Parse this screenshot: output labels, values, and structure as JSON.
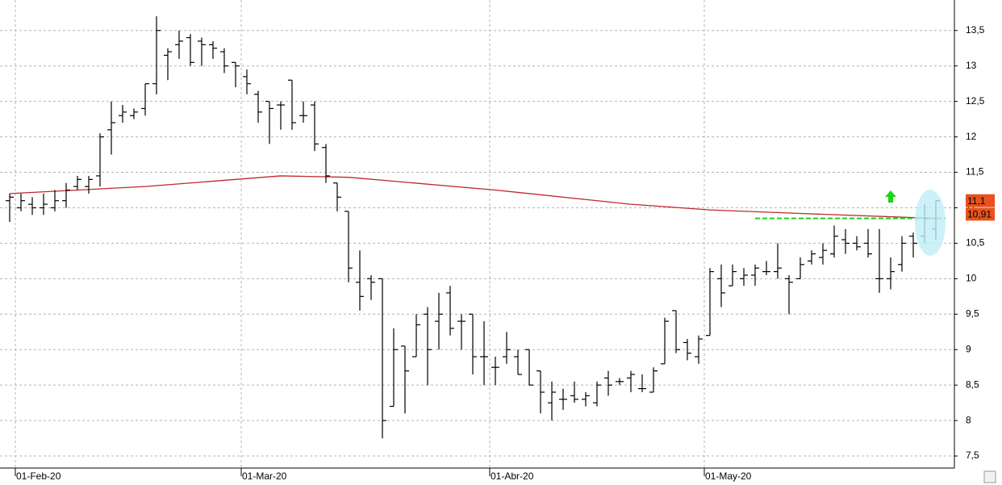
{
  "chart_data": {
    "type": "ohlc",
    "categories": [
      null,
      "01-Feb-20",
      null,
      null,
      null,
      null,
      null,
      null,
      null,
      null,
      null,
      null,
      null,
      null,
      null,
      null,
      null,
      null,
      null,
      null,
      null,
      "01-Mar-20",
      null,
      null,
      null,
      null,
      null,
      null,
      null,
      null,
      null,
      null,
      null,
      null,
      null,
      null,
      null,
      null,
      null,
      null,
      null,
      null,
      null,
      "01-Abr-20",
      null,
      null,
      null,
      null,
      null,
      null,
      null,
      null,
      null,
      null,
      null,
      null,
      null,
      null,
      null,
      null,
      null,
      null,
      "01-May-20",
      null,
      null,
      null,
      null,
      null,
      null,
      null,
      null,
      null,
      null,
      null,
      null,
      null,
      null,
      null,
      null,
      null,
      null,
      null,
      null
    ],
    "open": [
      11.1,
      11.0,
      11.05,
      11.0,
      11.0,
      11.1,
      11.3,
      11.3,
      11.45,
      12.1,
      12.3,
      12.3,
      12.4,
      12.75,
      13.15,
      13.3,
      13.4,
      13.35,
      13.3,
      13.2,
      13.05,
      12.85,
      12.6,
      12.5,
      12.45,
      12.8,
      12.3,
      12.45,
      11.85,
      11.35,
      10.95,
      9.95,
      10.0,
      10.0,
      8.2,
      9.05,
      8.9,
      9.5,
      9.4,
      9.8,
      9.4,
      9.5,
      8.9,
      8.75,
      8.9,
      8.9,
      9.0,
      8.7,
      8.25,
      8.3,
      8.35,
      8.3,
      8.25,
      8.6,
      8.55,
      8.6,
      8.45,
      8.4,
      8.8,
      9.55,
      9.1,
      8.9,
      9.2,
      10.0,
      9.9,
      10.0,
      10.05,
      10.1,
      10.1,
      10.0,
      10.0,
      10.25,
      10.3,
      10.35,
      10.55,
      10.5,
      10.5,
      10.0,
      10.0,
      10.2,
      10.6,
      10.6,
      10.7
    ],
    "high": [
      11.2,
      11.2,
      11.15,
      11.2,
      11.25,
      11.35,
      11.45,
      11.45,
      12.05,
      12.5,
      12.45,
      12.4,
      12.75,
      13.7,
      13.25,
      13.5,
      13.45,
      13.4,
      13.35,
      13.25,
      13.05,
      12.95,
      12.65,
      12.5,
      12.5,
      12.8,
      12.5,
      12.5,
      11.9,
      11.35,
      10.95,
      10.4,
      10.05,
      10.0,
      9.3,
      9.05,
      9.5,
      9.6,
      9.8,
      9.9,
      9.5,
      9.5,
      9.4,
      8.9,
      9.25,
      9.0,
      9.0,
      8.7,
      8.55,
      8.45,
      8.55,
      8.4,
      8.55,
      8.7,
      8.6,
      8.7,
      8.65,
      8.75,
      9.45,
      9.55,
      9.15,
      9.2,
      10.15,
      10.2,
      10.2,
      10.15,
      10.2,
      10.25,
      10.5,
      10.05,
      10.3,
      10.4,
      10.5,
      10.75,
      10.7,
      10.6,
      10.7,
      10.7,
      10.3,
      10.6,
      10.65,
      11.05,
      11.1
    ],
    "low": [
      10.8,
      10.95,
      10.9,
      10.9,
      10.95,
      11.0,
      11.25,
      11.2,
      11.3,
      11.75,
      12.2,
      12.25,
      12.3,
      12.6,
      12.8,
      13.1,
      13.0,
      13.0,
      13.1,
      12.9,
      12.7,
      12.6,
      12.2,
      11.9,
      12.1,
      12.1,
      12.2,
      11.8,
      11.35,
      10.95,
      9.95,
      9.55,
      9.7,
      7.75,
      8.2,
      8.1,
      8.9,
      8.5,
      9.0,
      9.2,
      9.0,
      8.65,
      8.5,
      8.5,
      8.8,
      8.65,
      8.5,
      8.1,
      8.0,
      8.15,
      8.25,
      8.2,
      8.2,
      8.35,
      8.5,
      8.4,
      8.4,
      8.4,
      8.8,
      8.95,
      8.85,
      8.8,
      9.2,
      9.6,
      9.9,
      9.9,
      9.9,
      10.05,
      10.0,
      9.5,
      10.0,
      10.2,
      10.2,
      10.3,
      10.35,
      10.4,
      10.3,
      9.8,
      9.85,
      10.1,
      10.3,
      10.5,
      10.55
    ],
    "close": [
      11.15,
      11.1,
      11.0,
      11.05,
      11.1,
      11.25,
      11.4,
      11.4,
      12.0,
      12.2,
      12.35,
      12.35,
      12.75,
      13.5,
      13.2,
      13.35,
      13.05,
      13.3,
      13.25,
      13.0,
      13.0,
      12.75,
      12.35,
      12.4,
      12.45,
      12.2,
      12.3,
      11.9,
      11.45,
      11.15,
      10.15,
      9.75,
      9.95,
      8.0,
      9.0,
      8.7,
      9.35,
      9.0,
      9.5,
      9.3,
      9.4,
      8.9,
      8.9,
      8.75,
      9.0,
      8.65,
      8.5,
      8.4,
      8.4,
      8.3,
      8.3,
      8.35,
      8.5,
      8.5,
      8.55,
      8.65,
      8.45,
      8.7,
      9.4,
      9.0,
      8.95,
      9.15,
      10.1,
      9.8,
      10.1,
      10.05,
      10.15,
      10.1,
      10.15,
      9.95,
      10.2,
      10.35,
      10.4,
      10.6,
      10.5,
      10.45,
      10.35,
      10.0,
      10.1,
      10.5,
      10.5,
      10.85,
      11.1
    ],
    "bar_color": "#000000",
    "moving_average": {
      "color": "#c0282a",
      "x": [
        0,
        12,
        24,
        30,
        43,
        55,
        62,
        70,
        82
      ],
      "values": [
        11.2,
        11.3,
        11.45,
        11.43,
        11.25,
        11.05,
        10.97,
        10.92,
        10.85
      ]
    },
    "support_line": {
      "color": "#19d419",
      "x": [
        66,
        82
      ],
      "value": 10.85
    },
    "price_tags": [
      {
        "value": 11.1,
        "label": "11,1"
      },
      {
        "value": 10.91,
        "label": "10,91"
      }
    ],
    "tag_color": "#e8521c",
    "ylim": [
      7.33,
      13.93
    ],
    "yticks": [
      {
        "value": 7.5,
        "label": "7,5"
      },
      8,
      {
        "value": 8.5,
        "label": "8,5"
      },
      9,
      {
        "value": 9.5,
        "label": "9,5"
      },
      10,
      {
        "value": 10.5,
        "label": "10,5"
      },
      11,
      {
        "value": 11.5,
        "label": "11,5"
      },
      12,
      {
        "value": 12.5,
        "label": "12,5"
      },
      13,
      {
        "value": 13.5,
        "label": "13,5"
      }
    ],
    "grid": true
  }
}
